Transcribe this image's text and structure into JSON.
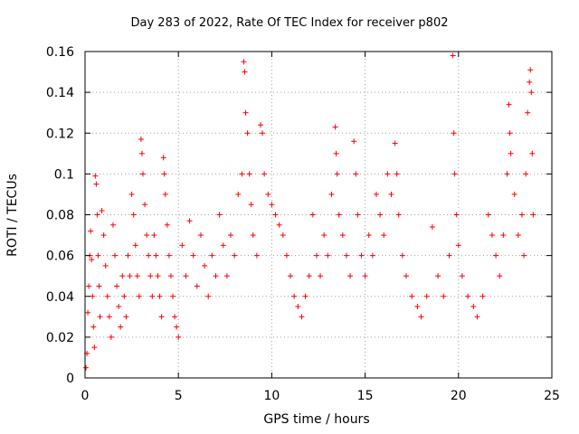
{
  "chart_data": {
    "type": "scatter",
    "title": "Day 283 of 2022, Rate Of TEC Index for receiver p802",
    "xlabel": "GPS time / hours",
    "ylabel": "ROTI / TECUs",
    "xlim": [
      0,
      25
    ],
    "ylim": [
      0,
      0.16
    ],
    "xticks": [
      0,
      5,
      10,
      15,
      20,
      25
    ],
    "yticks": [
      0,
      0.02,
      0.04,
      0.06,
      0.08,
      0.1,
      0.12,
      0.14,
      0.16
    ],
    "ytick_labels": [
      "0",
      "0.02",
      "0.04",
      "0.06",
      "0.08",
      "0.1",
      "0.12",
      "0.14",
      "0.16"
    ],
    "grid": true,
    "marker": "+",
    "color": "#ff0000",
    "points": [
      [
        0.05,
        0.005
      ],
      [
        0.1,
        0.012
      ],
      [
        0.15,
        0.032
      ],
      [
        0.2,
        0.045
      ],
      [
        0.25,
        0.06
      ],
      [
        0.3,
        0.072
      ],
      [
        0.35,
        0.058
      ],
      [
        0.4,
        0.04
      ],
      [
        0.45,
        0.025
      ],
      [
        0.5,
        0.015
      ],
      [
        0.55,
        0.099
      ],
      [
        0.6,
        0.095
      ],
      [
        0.65,
        0.08
      ],
      [
        0.7,
        0.06
      ],
      [
        0.75,
        0.045
      ],
      [
        0.8,
        0.03
      ],
      [
        0.9,
        0.082
      ],
      [
        1.0,
        0.07
      ],
      [
        1.1,
        0.055
      ],
      [
        1.2,
        0.04
      ],
      [
        1.3,
        0.03
      ],
      [
        1.4,
        0.02
      ],
      [
        1.5,
        0.075
      ],
      [
        1.6,
        0.06
      ],
      [
        1.7,
        0.045
      ],
      [
        1.8,
        0.035
      ],
      [
        1.9,
        0.025
      ],
      [
        2.0,
        0.05
      ],
      [
        2.1,
        0.04
      ],
      [
        2.2,
        0.03
      ],
      [
        2.3,
        0.06
      ],
      [
        2.4,
        0.05
      ],
      [
        2.5,
        0.09
      ],
      [
        2.6,
        0.08
      ],
      [
        2.7,
        0.065
      ],
      [
        2.8,
        0.05
      ],
      [
        2.9,
        0.04
      ],
      [
        3.0,
        0.117
      ],
      [
        3.05,
        0.11
      ],
      [
        3.1,
        0.1
      ],
      [
        3.2,
        0.085
      ],
      [
        3.3,
        0.07
      ],
      [
        3.4,
        0.06
      ],
      [
        3.5,
        0.05
      ],
      [
        3.6,
        0.04
      ],
      [
        3.7,
        0.07
      ],
      [
        3.8,
        0.06
      ],
      [
        3.9,
        0.05
      ],
      [
        4.0,
        0.04
      ],
      [
        4.1,
        0.03
      ],
      [
        4.2,
        0.108
      ],
      [
        4.25,
        0.1
      ],
      [
        4.3,
        0.09
      ],
      [
        4.4,
        0.075
      ],
      [
        4.5,
        0.06
      ],
      [
        4.6,
        0.05
      ],
      [
        4.7,
        0.04
      ],
      [
        4.8,
        0.03
      ],
      [
        4.9,
        0.025
      ],
      [
        5.0,
        0.02
      ],
      [
        5.2,
        0.065
      ],
      [
        5.4,
        0.05
      ],
      [
        5.6,
        0.077
      ],
      [
        5.8,
        0.06
      ],
      [
        6.0,
        0.045
      ],
      [
        6.2,
        0.07
      ],
      [
        6.4,
        0.055
      ],
      [
        6.6,
        0.04
      ],
      [
        6.8,
        0.06
      ],
      [
        7.0,
        0.05
      ],
      [
        7.2,
        0.08
      ],
      [
        7.4,
        0.065
      ],
      [
        7.6,
        0.05
      ],
      [
        7.8,
        0.07
      ],
      [
        8.0,
        0.06
      ],
      [
        8.2,
        0.09
      ],
      [
        8.4,
        0.1
      ],
      [
        8.5,
        0.155
      ],
      [
        8.55,
        0.15
      ],
      [
        8.6,
        0.13
      ],
      [
        8.7,
        0.12
      ],
      [
        8.8,
        0.1
      ],
      [
        8.9,
        0.085
      ],
      [
        9.0,
        0.07
      ],
      [
        9.2,
        0.06
      ],
      [
        9.4,
        0.124
      ],
      [
        9.5,
        0.12
      ],
      [
        9.6,
        0.1
      ],
      [
        9.8,
        0.09
      ],
      [
        10.0,
        0.085
      ],
      [
        10.2,
        0.08
      ],
      [
        10.4,
        0.075
      ],
      [
        10.6,
        0.07
      ],
      [
        10.8,
        0.06
      ],
      [
        11.0,
        0.05
      ],
      [
        11.2,
        0.04
      ],
      [
        11.4,
        0.035
      ],
      [
        11.6,
        0.03
      ],
      [
        11.8,
        0.04
      ],
      [
        12.0,
        0.05
      ],
      [
        12.2,
        0.08
      ],
      [
        12.4,
        0.06
      ],
      [
        12.6,
        0.05
      ],
      [
        12.8,
        0.07
      ],
      [
        13.0,
        0.06
      ],
      [
        13.2,
        0.09
      ],
      [
        13.4,
        0.123
      ],
      [
        13.45,
        0.11
      ],
      [
        13.5,
        0.1
      ],
      [
        13.6,
        0.08
      ],
      [
        13.8,
        0.07
      ],
      [
        14.0,
        0.06
      ],
      [
        14.2,
        0.05
      ],
      [
        14.4,
        0.116
      ],
      [
        14.5,
        0.1
      ],
      [
        14.6,
        0.08
      ],
      [
        14.8,
        0.06
      ],
      [
        15.0,
        0.05
      ],
      [
        15.2,
        0.07
      ],
      [
        15.4,
        0.06
      ],
      [
        15.6,
        0.09
      ],
      [
        15.8,
        0.08
      ],
      [
        16.0,
        0.07
      ],
      [
        16.2,
        0.1
      ],
      [
        16.4,
        0.09
      ],
      [
        16.6,
        0.115
      ],
      [
        16.7,
        0.1
      ],
      [
        16.8,
        0.08
      ],
      [
        17.0,
        0.06
      ],
      [
        17.2,
        0.05
      ],
      [
        17.5,
        0.04
      ],
      [
        17.8,
        0.035
      ],
      [
        18.0,
        0.03
      ],
      [
        18.3,
        0.04
      ],
      [
        18.6,
        0.074
      ],
      [
        18.9,
        0.05
      ],
      [
        19.2,
        0.04
      ],
      [
        19.5,
        0.06
      ],
      [
        19.7,
        0.158
      ],
      [
        19.75,
        0.12
      ],
      [
        19.8,
        0.1
      ],
      [
        19.9,
        0.08
      ],
      [
        20.0,
        0.065
      ],
      [
        20.2,
        0.05
      ],
      [
        20.5,
        0.04
      ],
      [
        20.8,
        0.035
      ],
      [
        21.0,
        0.03
      ],
      [
        21.3,
        0.04
      ],
      [
        21.6,
        0.08
      ],
      [
        21.8,
        0.07
      ],
      [
        22.0,
        0.06
      ],
      [
        22.2,
        0.05
      ],
      [
        22.4,
        0.07
      ],
      [
        22.6,
        0.1
      ],
      [
        22.7,
        0.134
      ],
      [
        22.75,
        0.12
      ],
      [
        22.8,
        0.11
      ],
      [
        23.0,
        0.09
      ],
      [
        23.2,
        0.07
      ],
      [
        23.4,
        0.08
      ],
      [
        23.5,
        0.06
      ],
      [
        23.6,
        0.1
      ],
      [
        23.7,
        0.13
      ],
      [
        23.8,
        0.145
      ],
      [
        23.85,
        0.151
      ],
      [
        23.9,
        0.14
      ],
      [
        23.95,
        0.11
      ],
      [
        24.0,
        0.08
      ]
    ]
  }
}
